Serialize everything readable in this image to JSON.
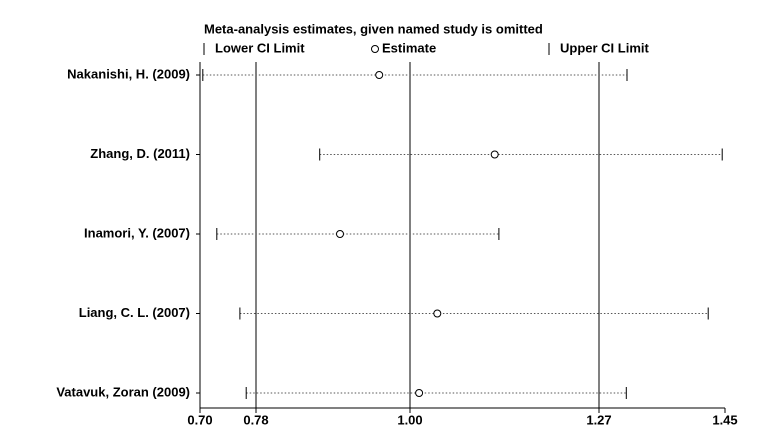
{
  "chart_data": {
    "type": "ci-plot",
    "title": "Meta-analysis estimates, given named study is omitted",
    "categories": [
      "Nakanishi, H. (2009)",
      "Zhang, D. (2011)",
      "Inamori, Y. (2007)",
      "Liang, C. L. (2007)",
      "Vatavuk, Zoran (2009)"
    ],
    "series": [
      {
        "name": "Lower CI Limit",
        "color": "#000000",
        "values": [
          0.704,
          0.871,
          0.724,
          0.757,
          0.766
        ]
      },
      {
        "name": "Estimate",
        "color": "#000000",
        "values": [
          0.956,
          1.121,
          0.9,
          1.039,
          1.013
        ]
      },
      {
        "name": "Upper CI Limit",
        "color": "#000000",
        "values": [
          1.31,
          1.446,
          1.127,
          1.426,
          1.309
        ]
      }
    ],
    "xlim": [
      0.7,
      1.45
    ],
    "xticks": [
      {
        "value": 0.7,
        "label": "0.70"
      },
      0.78,
      {
        "value": 1,
        "label": "1.00"
      },
      1.27,
      {
        "value": 1.45,
        "label": "1.45"
      }
    ],
    "reference_lines": [
      0.78,
      1,
      1.27
    ]
  }
}
